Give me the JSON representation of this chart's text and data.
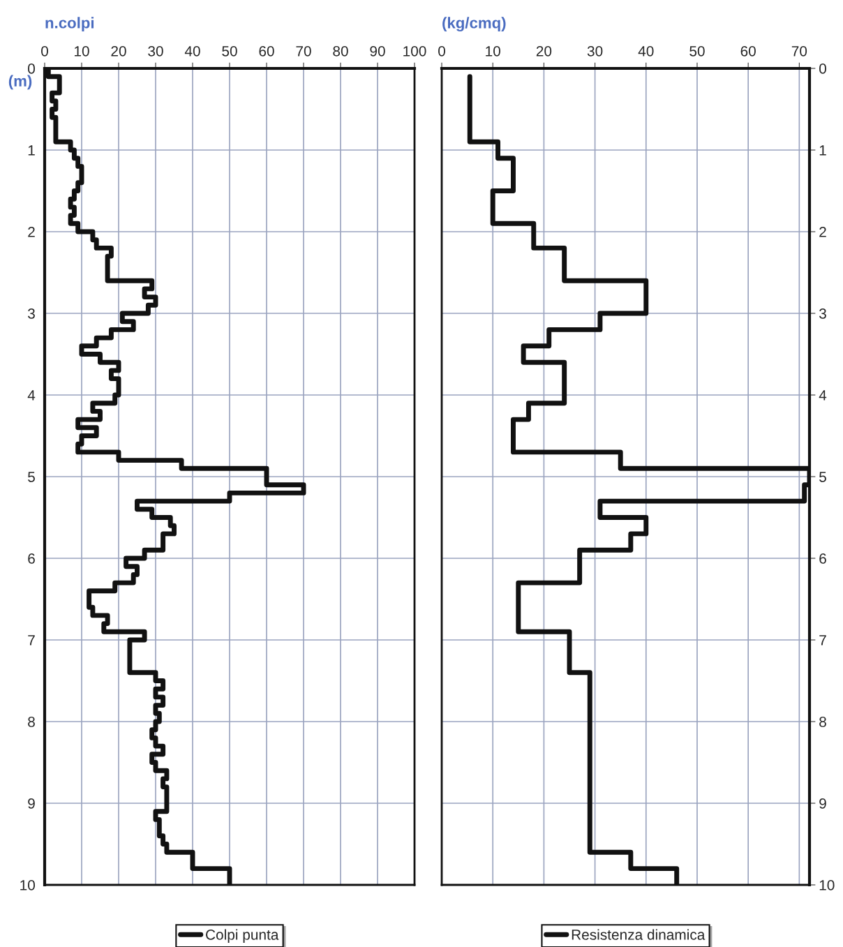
{
  "chart_data": [
    {
      "type": "step",
      "orientation": "horizontal",
      "xlabel": "n.colpi",
      "ylabel": "(m)",
      "xlim": [
        0,
        100
      ],
      "xticks": [
        0,
        10,
        20,
        30,
        40,
        50,
        60,
        70,
        80,
        90,
        100
      ],
      "ylim": [
        10,
        0
      ],
      "yticks": [
        0,
        1,
        2,
        3,
        4,
        5,
        6,
        7,
        8,
        9,
        10
      ],
      "grid": true,
      "legend": "bottom",
      "series": [
        {
          "name": "Colpi punta",
          "color": "#111111",
          "x": [
            0,
            0.1,
            0.2,
            0.3,
            0.4,
            0.5,
            0.6,
            0.7,
            0.8,
            0.9,
            1.0,
            1.1,
            1.2,
            1.3,
            1.4,
            1.5,
            1.6,
            1.7,
            1.8,
            1.9,
            2.0,
            2.1,
            2.2,
            2.3,
            2.4,
            2.5,
            2.6,
            2.7,
            2.8,
            2.9,
            3.0,
            3.1,
            3.2,
            3.3,
            3.4,
            3.5,
            3.6,
            3.7,
            3.8,
            3.9,
            4.0,
            4.1,
            4.2,
            4.3,
            4.4,
            4.5,
            4.6,
            4.7,
            4.8,
            4.9,
            5.0,
            5.1,
            5.2,
            5.3,
            5.4,
            5.5,
            5.6,
            5.7,
            5.8,
            5.9,
            6.0,
            6.1,
            6.2,
            6.3,
            6.4,
            6.5,
            6.6,
            6.7,
            6.8,
            6.9,
            7.0,
            7.1,
            7.2,
            7.3,
            7.4,
            7.5,
            7.6,
            7.7,
            7.8,
            7.9,
            8.0,
            8.1,
            8.2,
            8.3,
            8.4,
            8.5,
            8.6,
            8.7,
            8.8,
            8.9,
            9.0,
            9.1,
            9.2,
            9.3,
            9.4,
            9.5,
            9.6,
            9.7,
            9.8,
            9.9,
            10
          ],
          "values": [
            1,
            4,
            4,
            2,
            3,
            2,
            3,
            3,
            3,
            7,
            8,
            9,
            10,
            10,
            9,
            8,
            7,
            8,
            7,
            9,
            13,
            14,
            18,
            17,
            17,
            17,
            29,
            27,
            30,
            28,
            21,
            24,
            18,
            14,
            10,
            15,
            20,
            18,
            20,
            20,
            19,
            13,
            15,
            9,
            14,
            10,
            9,
            20,
            37,
            60,
            60,
            70,
            50,
            25,
            29,
            34,
            35,
            32,
            32,
            27,
            22,
            25,
            24,
            19,
            12,
            12,
            13,
            17,
            16,
            27,
            23,
            23,
            23,
            23,
            30,
            32,
            30,
            32,
            30,
            31,
            30,
            29,
            30,
            32,
            29,
            30,
            33,
            32,
            33,
            33,
            33,
            30,
            31,
            31,
            32,
            33,
            40,
            40,
            50,
            50,
            50
          ]
        }
      ]
    },
    {
      "type": "step",
      "orientation": "horizontal",
      "xlabel": "(kg/cmq)",
      "xlim": [
        0,
        72
      ],
      "xticks": [
        0,
        10,
        20,
        30,
        40,
        50,
        60,
        70
      ],
      "ylim": [
        10,
        0
      ],
      "yticks": [
        0,
        1,
        2,
        3,
        4,
        5,
        6,
        7,
        8,
        9,
        10
      ],
      "grid": true,
      "legend": "bottom",
      "series": [
        {
          "name": "Resistenza dinamica",
          "color": "#111111",
          "x": [
            0.1,
            0.9,
            1.1,
            1.5,
            1.9,
            2.2,
            2.6,
            3.0,
            3.2,
            3.4,
            3.6,
            4.1,
            4.3,
            4.7,
            4.9,
            5.1,
            5.3,
            5.5,
            5.7,
            5.9,
            6.3,
            6.9,
            7.4,
            9.6,
            9.8,
            10
          ],
          "values": [
            5.5,
            11,
            14,
            10,
            18,
            24,
            40,
            31,
            21,
            16,
            24,
            17,
            14,
            35,
            72,
            71,
            31,
            40,
            37,
            27,
            15,
            25,
            29,
            37,
            46,
            46
          ]
        }
      ]
    }
  ]
}
